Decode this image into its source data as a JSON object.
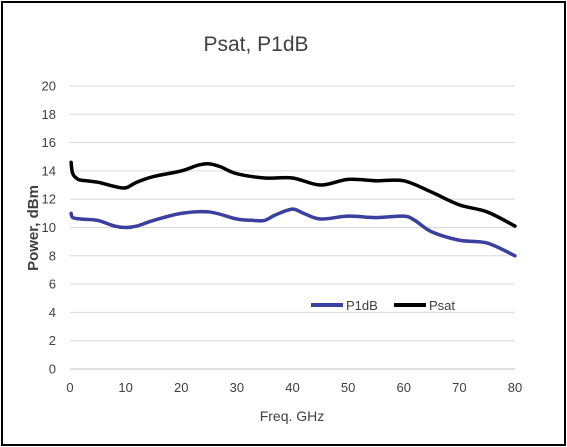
{
  "chart_data": {
    "type": "line",
    "title": "Psat, P1dB",
    "xlabel": "Freq. GHz",
    "ylabel": "Power, dBm",
    "xlim": [
      0,
      80
    ],
    "ylim": [
      0,
      20
    ],
    "xticks": [
      0,
      10,
      20,
      30,
      40,
      50,
      60,
      70,
      80
    ],
    "yticks": [
      0,
      2,
      4,
      6,
      8,
      10,
      12,
      14,
      16,
      18,
      20
    ],
    "grid": true,
    "legend_position": "lower-right",
    "series": [
      {
        "name": "P1dB",
        "color": "#3a3fa0",
        "x": [
          0.2,
          0.5,
          2,
          5,
          8,
          10,
          12,
          15,
          20,
          25,
          30,
          33,
          35,
          37,
          40,
          42,
          45,
          50,
          55,
          60,
          62,
          65,
          70,
          75,
          80
        ],
        "y": [
          11.0,
          10.7,
          10.6,
          10.5,
          10.1,
          10.0,
          10.1,
          10.5,
          11.0,
          11.1,
          10.6,
          10.5,
          10.5,
          10.9,
          11.3,
          11.0,
          10.6,
          10.8,
          10.7,
          10.8,
          10.5,
          9.7,
          9.1,
          8.9,
          8.0
        ]
      },
      {
        "name": "Psat",
        "color": "#000000",
        "x": [
          0.2,
          0.5,
          1.5,
          3,
          5,
          8,
          10,
          12,
          15,
          20,
          23,
          25,
          27,
          30,
          35,
          40,
          45,
          50,
          55,
          60,
          65,
          70,
          75,
          80
        ],
        "y": [
          14.6,
          13.8,
          13.4,
          13.3,
          13.2,
          12.9,
          12.8,
          13.2,
          13.6,
          14.0,
          14.4,
          14.5,
          14.3,
          13.8,
          13.5,
          13.5,
          13.0,
          13.4,
          13.3,
          13.3,
          12.5,
          11.6,
          11.1,
          10.1
        ]
      }
    ]
  }
}
